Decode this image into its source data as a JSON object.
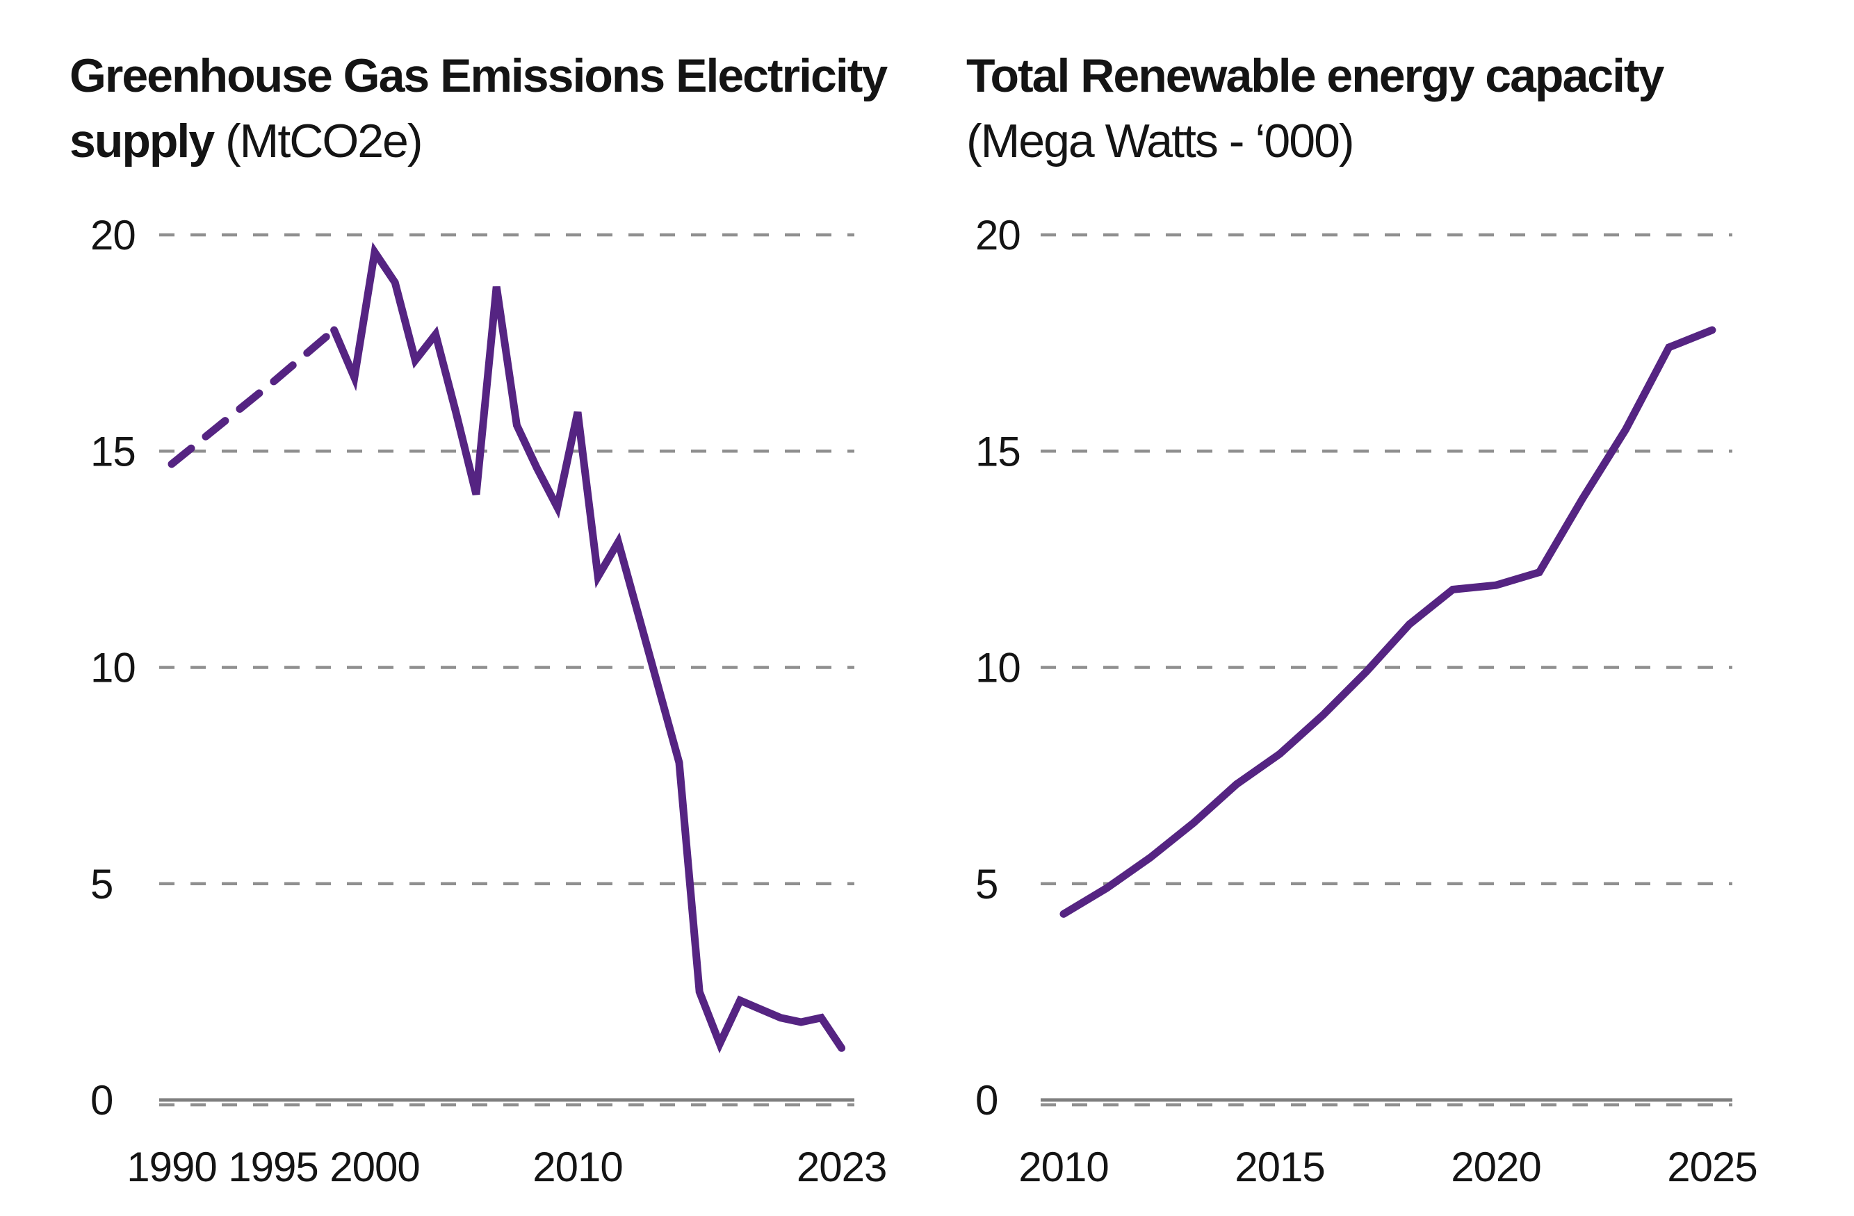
{
  "colors": {
    "line": "#552482",
    "gridline": "#8f8f8f",
    "axis": "#7f7f7f",
    "text": "#141414",
    "background": "#ffffff"
  },
  "chart_data": [
    {
      "type": "line",
      "title": "Greenhouse Gas Emissions Electricity supply (MtCO2e)",
      "title_line1_bold": "Greenhouse Gas Emissions Electricity",
      "title_line2_bold": "supply",
      "title_line2_regular": " (MtCO2e)",
      "ylabel": "MtCO2e",
      "ylim": [
        0,
        20
      ],
      "yticks": [
        0,
        5,
        10,
        15,
        20
      ],
      "xticks": [
        1990,
        1995,
        2000,
        2010,
        2023
      ],
      "grid": "horizontal-dashed",
      "legend_position": "none",
      "series": [
        {
          "name": "interpolated-1990-1998",
          "style": "dashed",
          "x": [
            1990,
            1995,
            1998
          ],
          "y": [
            14.7,
            16.6,
            17.8
          ]
        },
        {
          "name": "annual-1998-2023",
          "style": "solid",
          "x": [
            1998,
            1999,
            2000,
            2001,
            2002,
            2003,
            2004,
            2005,
            2006,
            2007,
            2008,
            2009,
            2010,
            2011,
            2012,
            2013,
            2014,
            2015,
            2016,
            2017,
            2018,
            2019,
            2020,
            2021,
            2022,
            2023
          ],
          "y": [
            17.8,
            16.7,
            19.6,
            18.9,
            17.1,
            17.7,
            15.9,
            14.0,
            18.8,
            15.6,
            14.6,
            13.7,
            15.9,
            12.1,
            12.9,
            11.2,
            9.5,
            7.8,
            2.5,
            1.3,
            2.3,
            2.1,
            1.9,
            1.8,
            1.9,
            1.2
          ]
        }
      ]
    },
    {
      "type": "line",
      "title": "Total Renewable energy capacity (Mega Watts - ‘000)",
      "title_line1_bold": "Total Renewable energy capacity",
      "title_line2_regular": "(Mega Watts - ‘000)",
      "ylabel": "Mega Watts - '000",
      "ylim": [
        0,
        20
      ],
      "yticks": [
        0,
        5,
        10,
        15,
        20
      ],
      "xticks": [
        2010,
        2015,
        2020,
        2025
      ],
      "grid": "horizontal-dashed",
      "legend_position": "none",
      "series": [
        {
          "name": "total-renewable-capacity",
          "style": "solid",
          "x": [
            2010,
            2011,
            2012,
            2013,
            2014,
            2015,
            2016,
            2017,
            2018,
            2019,
            2020,
            2021,
            2022,
            2023,
            2024,
            2025
          ],
          "y": [
            4.3,
            4.9,
            5.6,
            6.4,
            7.3,
            8.0,
            8.9,
            9.9,
            11.0,
            11.8,
            11.9,
            12.2,
            13.9,
            15.5,
            17.4,
            17.8
          ]
        }
      ]
    }
  ]
}
